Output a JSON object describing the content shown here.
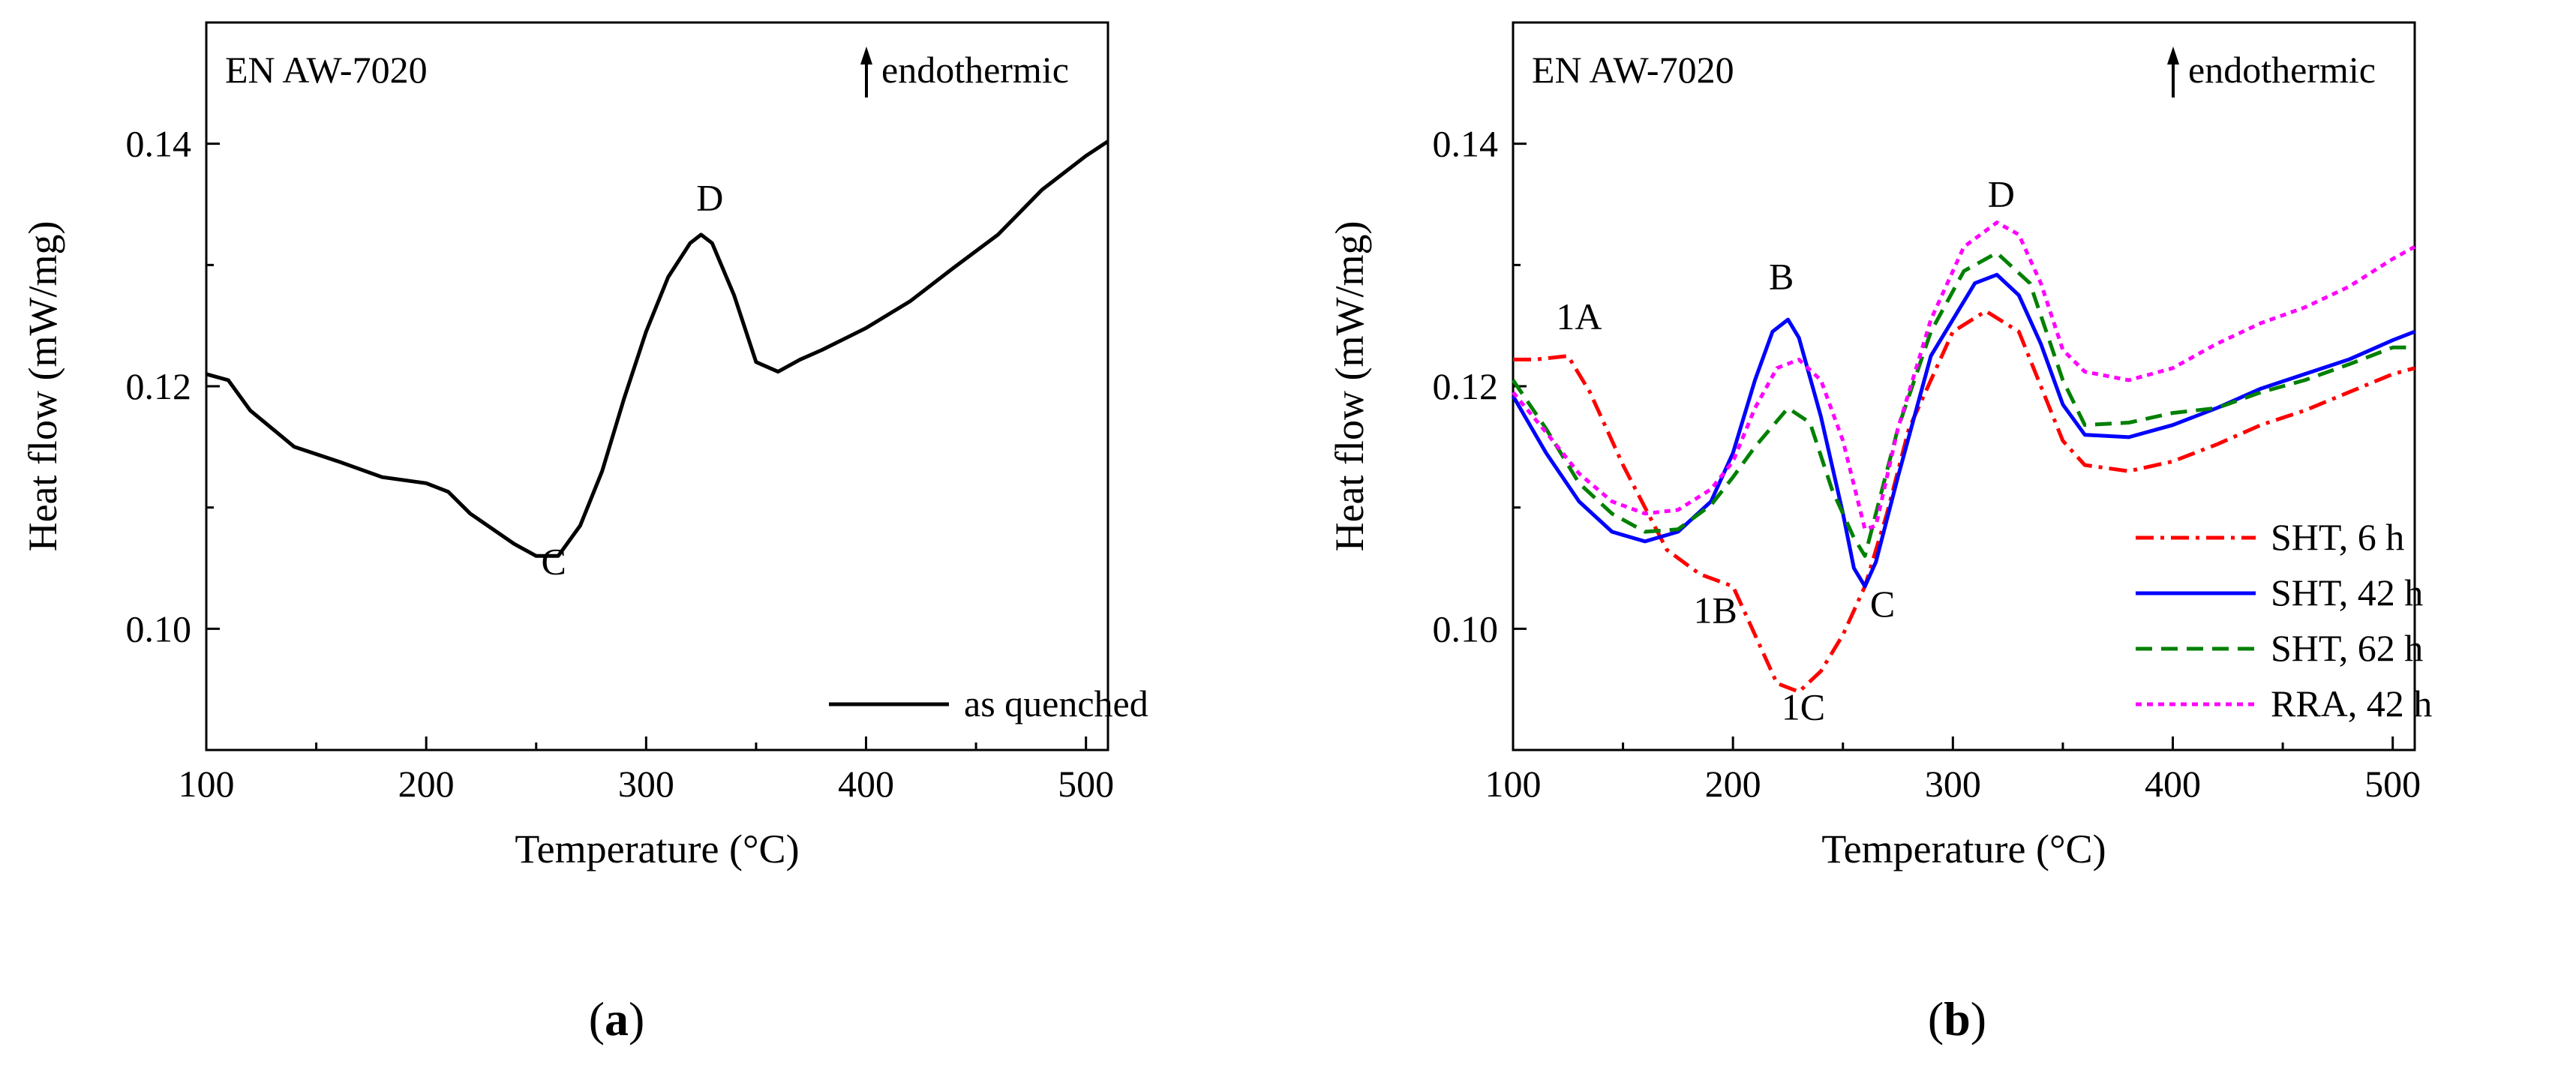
{
  "chart_data": [
    {
      "type": "line",
      "panel_label": "a",
      "inset_title": "EN AW-7020",
      "direction_label": "endothermic",
      "xlabel": "Temperature (°C)",
      "ylabel": "Heat flow (mW/mg)",
      "xlim": [
        100,
        510
      ],
      "ylim": [
        0.09,
        0.15
      ],
      "xticks": [
        100,
        200,
        300,
        400,
        500
      ],
      "xtick_labels": [
        "100",
        "200",
        "300",
        "400",
        "500"
      ],
      "yticks": [
        0.1,
        0.12,
        0.14
      ],
      "ytick_labels": [
        "0.10",
        "0.12",
        "0.14"
      ],
      "legend_position": "bottom-right",
      "series": [
        {
          "name": "as quenched",
          "color": "#000000",
          "dash": "solid",
          "x": [
            100,
            110,
            120,
            140,
            160,
            180,
            200,
            210,
            220,
            240,
            250,
            260,
            270,
            280,
            290,
            300,
            310,
            320,
            325,
            330,
            340,
            350,
            360,
            370,
            380,
            400,
            420,
            440,
            460,
            480,
            500,
            510
          ],
          "y": [
            0.121,
            0.1205,
            0.118,
            0.115,
            0.1138,
            0.1125,
            0.112,
            0.1113,
            0.1095,
            0.107,
            0.106,
            0.106,
            0.1085,
            0.113,
            0.119,
            0.1245,
            0.129,
            0.1318,
            0.1325,
            0.1318,
            0.1275,
            0.122,
            0.1212,
            0.1222,
            0.123,
            0.1248,
            0.127,
            0.1298,
            0.1325,
            0.1362,
            0.139,
            0.1402
          ]
        }
      ],
      "annotations": [
        {
          "text": "C",
          "x": 258,
          "y": 0.1045
        },
        {
          "text": "D",
          "x": 329,
          "y": 0.1345
        }
      ]
    },
    {
      "type": "line",
      "panel_label": "b",
      "inset_title": "EN AW-7020",
      "direction_label": "endothermic",
      "xlabel": "Temperature (°C)",
      "ylabel": "Heat flow (mW/mg)",
      "xlim": [
        100,
        510
      ],
      "ylim": [
        0.09,
        0.15
      ],
      "xticks": [
        100,
        200,
        300,
        400,
        500
      ],
      "xtick_labels": [
        "100",
        "200",
        "300",
        "400",
        "500"
      ],
      "yticks": [
        0.1,
        0.12,
        0.14
      ],
      "ytick_labels": [
        "0.10",
        "0.12",
        "0.14"
      ],
      "legend_position": "bottom-right",
      "series": [
        {
          "name": "SHT, 6 h",
          "color": "#ff0000",
          "dash": "dashdot",
          "x": [
            100,
            110,
            125,
            135,
            150,
            170,
            185,
            200,
            210,
            220,
            230,
            240,
            250,
            260,
            270,
            280,
            300,
            315,
            330,
            350,
            360,
            380,
            400,
            420,
            440,
            460,
            480,
            500,
            510
          ],
          "y": [
            0.1222,
            0.1222,
            0.1225,
            0.1195,
            0.1135,
            0.1065,
            0.1045,
            0.1035,
            0.0995,
            0.0955,
            0.0948,
            0.0965,
            0.0995,
            0.1035,
            0.1095,
            0.1165,
            0.1245,
            0.1262,
            0.1245,
            0.1155,
            0.1135,
            0.113,
            0.1138,
            0.1152,
            0.1168,
            0.118,
            0.1195,
            0.121,
            0.1215
          ]
        },
        {
          "name": "SHT, 42 h",
          "color": "#0000ff",
          "dash": "solid",
          "x": [
            100,
            115,
            130,
            145,
            160,
            175,
            190,
            200,
            210,
            218,
            225,
            230,
            240,
            250,
            255,
            260,
            265,
            275,
            290,
            310,
            320,
            330,
            340,
            350,
            360,
            380,
            400,
            420,
            440,
            460,
            480,
            500,
            510
          ],
          "y": [
            0.1192,
            0.1145,
            0.1105,
            0.108,
            0.1072,
            0.108,
            0.1105,
            0.1145,
            0.1205,
            0.1245,
            0.1255,
            0.124,
            0.1175,
            0.1095,
            0.105,
            0.1035,
            0.1055,
            0.1125,
            0.1225,
            0.1285,
            0.1292,
            0.1275,
            0.1235,
            0.1185,
            0.116,
            0.1158,
            0.1168,
            0.1182,
            0.1198,
            0.121,
            0.1222,
            0.1238,
            0.1245
          ]
        },
        {
          "name": "SHT, 62 h",
          "color": "#008000",
          "dash": "dashed",
          "x": [
            100,
            115,
            130,
            145,
            160,
            175,
            190,
            200,
            210,
            225,
            235,
            245,
            255,
            260,
            265,
            275,
            290,
            305,
            320,
            335,
            350,
            360,
            380,
            400,
            420,
            440,
            460,
            480,
            500,
            510
          ],
          "y": [
            0.1205,
            0.1165,
            0.112,
            0.1095,
            0.108,
            0.1082,
            0.1102,
            0.1125,
            0.115,
            0.1182,
            0.117,
            0.1115,
            0.1075,
            0.106,
            0.1095,
            0.1165,
            0.1245,
            0.1295,
            0.131,
            0.1285,
            0.1205,
            0.1168,
            0.117,
            0.1178,
            0.1182,
            0.1195,
            0.1205,
            0.1218,
            0.1232,
            0.1232
          ]
        },
        {
          "name": "RRA, 42 h",
          "color": "#ff00ff",
          "dash": "dotted",
          "x": [
            100,
            115,
            130,
            145,
            160,
            175,
            190,
            200,
            210,
            220,
            230,
            240,
            250,
            260,
            265,
            275,
            290,
            305,
            320,
            330,
            340,
            350,
            360,
            380,
            400,
            420,
            440,
            460,
            480,
            500,
            510
          ],
          "y": [
            0.1195,
            0.1162,
            0.1128,
            0.1105,
            0.1095,
            0.1098,
            0.1115,
            0.1138,
            0.1182,
            0.1215,
            0.1222,
            0.1205,
            0.1155,
            0.1082,
            0.1085,
            0.1165,
            0.1255,
            0.1315,
            0.1335,
            0.1325,
            0.1285,
            0.123,
            0.1212,
            0.1205,
            0.1215,
            0.1235,
            0.1252,
            0.1265,
            0.1282,
            0.1305,
            0.1315
          ]
        }
      ],
      "annotations": [
        {
          "text": "1A",
          "x": 130,
          "y": 0.1247,
          "color": "#ff0000"
        },
        {
          "text": "B",
          "x": 222,
          "y": 0.128,
          "color": "#000000"
        },
        {
          "text": "1B",
          "x": 192,
          "y": 0.1005,
          "color": "#ff0000"
        },
        {
          "text": "C",
          "x": 268,
          "y": 0.101,
          "color": "#000000"
        },
        {
          "text": "1C",
          "x": 232,
          "y": 0.0925,
          "color": "#ff0000"
        },
        {
          "text": "D",
          "x": 322,
          "y": 0.1348,
          "color": "#000000"
        }
      ]
    }
  ]
}
